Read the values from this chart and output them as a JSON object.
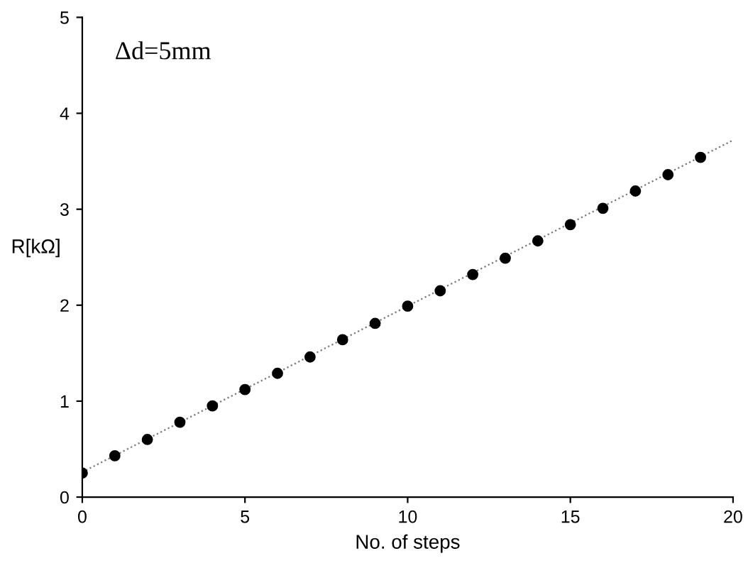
{
  "chart_data": {
    "type": "scatter",
    "xlabel": "No. of steps",
    "ylabel": "R[kΩ]",
    "annotations": [
      "Δd=5mm"
    ],
    "x": [
      0,
      1,
      2,
      3,
      4,
      5,
      6,
      7,
      8,
      9,
      10,
      11,
      12,
      13,
      14,
      15,
      16,
      17,
      18,
      19
    ],
    "series": [
      {
        "color": "#000000",
        "marker": "circle",
        "values": [
          0.25,
          0.43,
          0.6,
          0.78,
          0.95,
          1.12,
          1.29,
          1.46,
          1.64,
          1.81,
          1.99,
          2.15,
          2.32,
          2.49,
          2.67,
          2.84,
          3.01,
          3.19,
          3.36,
          3.54
        ]
      },
      {
        "type": "line",
        "color": "#777777",
        "line_style": "dotted",
        "x": [
          0,
          20
        ],
        "values": [
          0.26,
          3.72
        ]
      }
    ],
    "xlim": [
      0,
      20
    ],
    "ylim": [
      0,
      5
    ],
    "xticks": [
      0,
      5,
      10,
      15,
      20
    ],
    "yticks": [
      0,
      1,
      2,
      3,
      4,
      5
    ],
    "grid": false
  }
}
